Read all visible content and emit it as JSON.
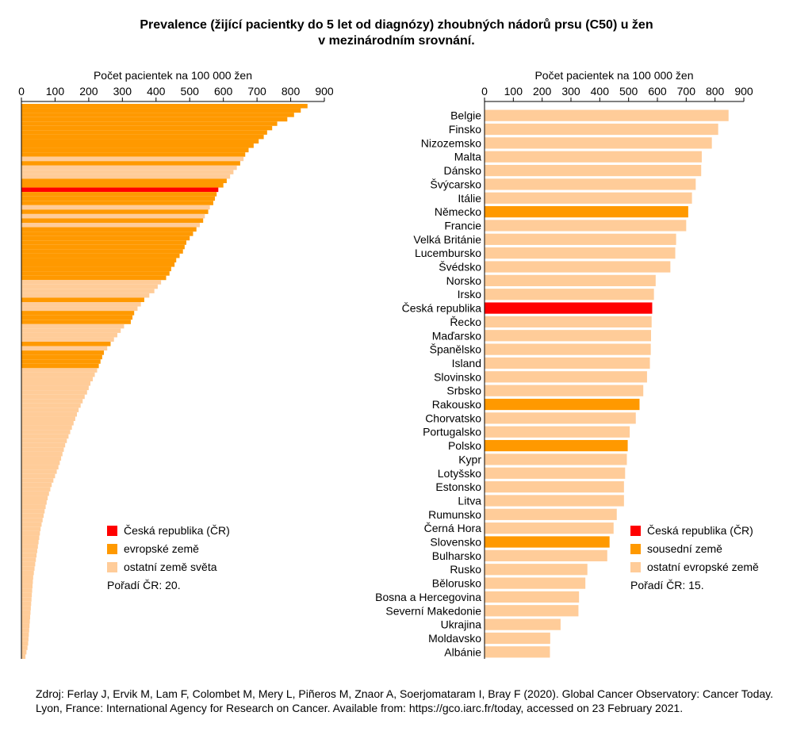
{
  "title": {
    "line1": "Prevalence (žijící pacientky do 5 let od diagnózy) zhoubných nádorů prsu (C50) u žen",
    "line2": "v mezinárodním srovnání."
  },
  "colors": {
    "cz": "#ff0000",
    "european": "#ff9900",
    "other": "#ffcc99"
  },
  "chart_data": [
    {
      "type": "bar",
      "orientation": "horizontal",
      "xlabel": "Počet pacientek na 100 000 žen",
      "xlim": [
        0,
        900
      ],
      "xticks": [
        0,
        100,
        200,
        300,
        400,
        500,
        600,
        700,
        800,
        900
      ],
      "categories_hidden": true,
      "values": [
        850,
        830,
        810,
        790,
        760,
        745,
        730,
        720,
        705,
        690,
        675,
        665,
        660,
        650,
        640,
        630,
        620,
        610,
        600,
        585,
        580,
        575,
        570,
        560,
        555,
        545,
        540,
        530,
        520,
        510,
        500,
        490,
        485,
        480,
        470,
        460,
        455,
        445,
        440,
        430,
        415,
        405,
        395,
        380,
        365,
        355,
        345,
        335,
        330,
        325,
        305,
        295,
        285,
        275,
        265,
        255,
        245,
        240,
        235,
        230,
        225,
        218,
        212,
        205,
        200,
        195,
        188,
        182,
        176,
        170,
        165,
        160,
        155,
        150,
        145,
        140,
        135,
        130,
        126,
        122,
        118,
        114,
        110,
        105,
        100,
        95,
        90,
        86,
        82,
        78,
        75,
        72,
        69,
        66,
        63,
        60,
        57,
        55,
        53,
        51,
        49,
        47,
        45,
        43,
        41,
        39,
        37,
        35,
        34,
        33,
        32,
        31,
        30,
        29,
        28,
        27,
        26,
        25,
        24,
        23,
        22,
        21,
        20,
        18,
        15,
        12
      ],
      "series_type": [
        "e",
        "e",
        "e",
        "e",
        "e",
        "e",
        "e",
        "e",
        "e",
        "e",
        "e",
        "e",
        "o",
        "e",
        "o",
        "o",
        "o",
        "e",
        "e",
        "c",
        "e",
        "e",
        "e",
        "o",
        "e",
        "o",
        "e",
        "o",
        "e",
        "e",
        "e",
        "e",
        "e",
        "e",
        "e",
        "e",
        "e",
        "e",
        "e",
        "e",
        "o",
        "o",
        "o",
        "o",
        "e",
        "o",
        "o",
        "e",
        "e",
        "e",
        "o",
        "o",
        "o",
        "o",
        "e",
        "o",
        "e",
        "e",
        "e",
        "e",
        "o",
        "o",
        "o",
        "o",
        "o",
        "o",
        "o",
        "o",
        "o",
        "o",
        "o",
        "o",
        "o",
        "o",
        "o",
        "o",
        "o",
        "o",
        "o",
        "o",
        "o",
        "o",
        "o",
        "o",
        "o",
        "o",
        "o",
        "o",
        "o",
        "o",
        "o",
        "o",
        "o",
        "o",
        "o",
        "o",
        "o",
        "o",
        "o",
        "o",
        "o",
        "o",
        "o",
        "o",
        "o",
        "o",
        "o",
        "o",
        "o",
        "o",
        "o",
        "o",
        "o",
        "o",
        "o",
        "o",
        "o",
        "o",
        "o",
        "o",
        "o",
        "o",
        "o",
        "o",
        "o",
        "o"
      ],
      "legend": {
        "items": [
          "Česká republika (ČR)",
          "evropské země",
          "ostatní země světa"
        ],
        "rank_text": "Pořadí ČR: 20."
      }
    },
    {
      "type": "bar",
      "orientation": "horizontal",
      "xlabel": "Počet pacientek na 100 000 žen",
      "xlim": [
        0,
        900
      ],
      "xticks": [
        0,
        100,
        200,
        300,
        400,
        500,
        600,
        700,
        800,
        900
      ],
      "categories": [
        "Belgie",
        "Finsko",
        "Nizozemsko",
        "Malta",
        "Dánsko",
        "Švýcarsko",
        "Itálie",
        "Německo",
        "Francie",
        "Velká Británie",
        "Lucembursko",
        "Švédsko",
        "Norsko",
        "Irsko",
        "Česká republika",
        "Řecko",
        "Maďarsko",
        "Španělsko",
        "Island",
        "Slovinsko",
        "Srbsko",
        "Rakousko",
        "Chorvatsko",
        "Portugalsko",
        "Polsko",
        "Kypr",
        "Lotyšsko",
        "Estonsko",
        "Litva",
        "Rumunsko",
        "Černá Hora",
        "Slovensko",
        "Bulharsko",
        "Rusko",
        "Bělorusko",
        "Bosna a Hercegovina",
        "Severní Makedonie",
        "Ukrajina",
        "Moldavsko",
        "Albánie"
      ],
      "values": [
        847,
        811,
        789,
        754,
        752,
        733,
        720,
        707,
        700,
        665,
        662,
        645,
        594,
        588,
        582,
        580,
        578,
        577,
        574,
        564,
        551,
        538,
        525,
        504,
        497,
        494,
        488,
        484,
        484,
        459,
        448,
        434,
        426,
        357,
        350,
        328,
        326,
        264,
        228,
        227
      ],
      "series_type": [
        "o",
        "o",
        "o",
        "o",
        "o",
        "o",
        "o",
        "n",
        "o",
        "o",
        "o",
        "o",
        "o",
        "o",
        "c",
        "o",
        "o",
        "o",
        "o",
        "o",
        "o",
        "n",
        "o",
        "o",
        "n",
        "o",
        "o",
        "o",
        "o",
        "o",
        "o",
        "n",
        "o",
        "o",
        "o",
        "o",
        "o",
        "o",
        "o",
        "o"
      ],
      "legend": {
        "items": [
          "Česká republika (ČR)",
          "sousední země",
          "ostatní evropské země"
        ],
        "rank_text": "Pořadí ČR: 15."
      }
    }
  ],
  "source": {
    "text": "Zdroj: Ferlay J, Ervik M, Lam F, Colombet M, Mery L, Piñeros M, Znaor A, Soerjomataram I, Bray F (2020). Global Cancer Observatory: Cancer Today. Lyon, France: International Agency for Research on Cancer. Available from: https://gco.iarc.fr/today, accessed on 23 February 2021."
  }
}
